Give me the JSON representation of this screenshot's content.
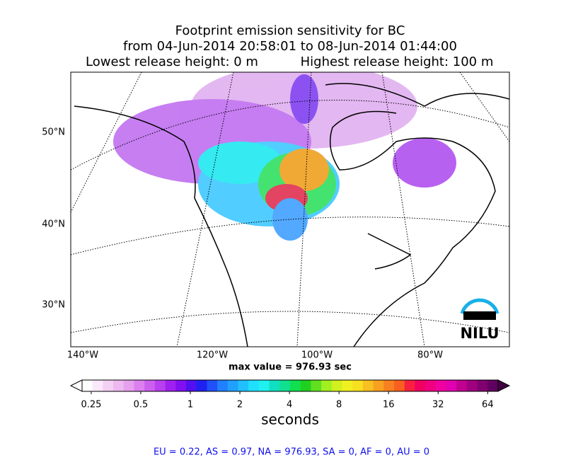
{
  "title": {
    "line1": "Footprint emission sensitivity for BC",
    "line2": "from 04-Jun-2014 20:58:01 to 08-Jun-2014 01:44:00",
    "line3_left": "Lowest release height: 0 m",
    "line3_right": "Highest release height: 100 m"
  },
  "map": {
    "lat_labels": [
      "50°N",
      "40°N",
      "30°N"
    ],
    "lon_labels": [
      "140°W",
      "120°W",
      "100°W",
      "80°W"
    ],
    "logo": "NILU"
  },
  "max_value": "max value = 976.93 sec",
  "colorbar": {
    "ticks": [
      0.25,
      0.5,
      1,
      2,
      4,
      8,
      16,
      32,
      64
    ],
    "lim": [
      0.22,
      74
    ],
    "log": true,
    "label": "seconds"
  },
  "footer": "EU = 0.22,  AS = 0.97,  NA = 976.93,  SA = 0,  AF = 0,  AU = 0"
}
